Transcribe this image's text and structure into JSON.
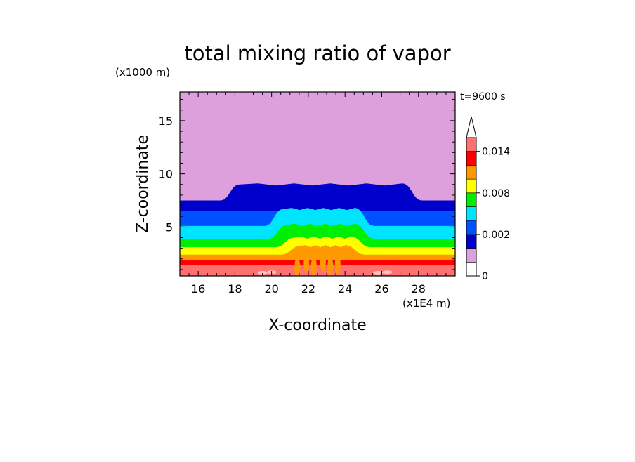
{
  "chart_data": {
    "type": "heatmap",
    "title": "total mixing ratio of vapor",
    "xlabel": "X-coordinate",
    "ylabel": "Z-coordinate",
    "x_unit": "(x1E4 m)",
    "y_unit": "(x1000 m)",
    "time_label": "t=9600 s",
    "xlim": [
      15,
      30
    ],
    "ylim": [
      0.4,
      17.7
    ],
    "x_ticks": [
      16,
      18,
      20,
      22,
      24,
      26,
      28
    ],
    "y_ticks": [
      5,
      10,
      15
    ],
    "colorbar": {
      "levels": [
        0,
        0.0005,
        0.001,
        0.002,
        0.004,
        0.006,
        0.008,
        0.01,
        0.012,
        0.014,
        0.016
      ],
      "colors": [
        "#ffffff",
        "#dda0dd",
        "#0000cc",
        "#0050ff",
        "#00e5ff",
        "#00ee00",
        "#ffff00",
        "#ff9900",
        "#ff0000",
        "#ff7070",
        "#ffc0c0"
      ],
      "tick_labels": [
        "0",
        "0.002",
        "0.008",
        "0.014"
      ],
      "tick_values": [
        0,
        0.002,
        0.008,
        0.014
      ],
      "extend": "max"
    },
    "contours": {
      "background_color": "#dda0dd",
      "layers": [
        {
          "level": 0.0005,
          "color": "#0000cc",
          "top_km": 7.5,
          "dome_top_km": 9.0,
          "dome_x": [
            18,
            27.4
          ]
        },
        {
          "level": 0.001,
          "color": "#0050ff",
          "top_km": 6.5
        },
        {
          "level": 0.002,
          "color": "#00e5ff",
          "top_km": 5.1,
          "dome_top_km": 6.7,
          "dome_x": [
            20.4,
            24.8
          ]
        },
        {
          "level": 0.004,
          "color": "#00ee00",
          "top_km": 3.9,
          "dome_top_km": 5.2,
          "dome_x": [
            20.6,
            24.8
          ]
        },
        {
          "level": 0.006,
          "color": "#ffff00",
          "top_km": 3.1,
          "dome_top_km": 4.0,
          "dome_x": [
            21.0,
            24.6
          ]
        },
        {
          "level": 0.008,
          "color": "#ff9900",
          "top_km": 2.4,
          "dome_top_km": 3.2,
          "dome_x": [
            21.3,
            24.3
          ]
        },
        {
          "level": 0.01,
          "color": "#ff0000",
          "top_km": 1.9
        },
        {
          "level": 0.012,
          "color": "#ff7070",
          "top_km": 1.4
        }
      ]
    }
  }
}
